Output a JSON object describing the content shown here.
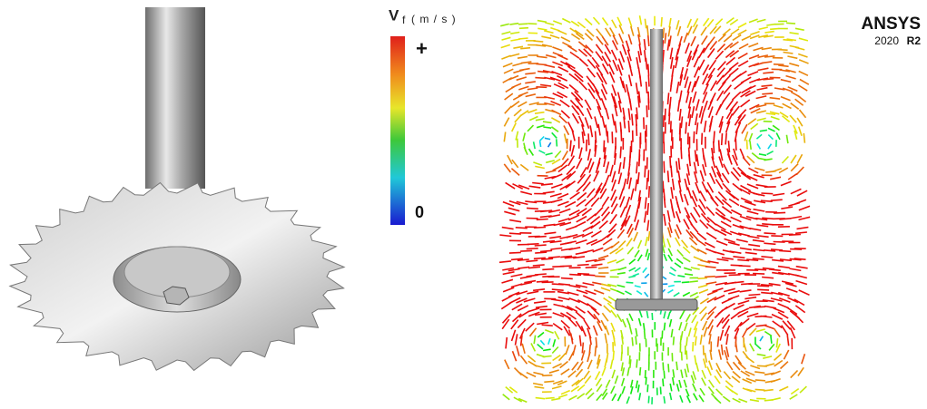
{
  "legend": {
    "symbol": "V",
    "subscript": "f",
    "unit": "( m / s )",
    "max_label": "+",
    "min_label": "0"
  },
  "logo": {
    "name": "ANSYS",
    "version": "2020",
    "release": "R2"
  }
}
